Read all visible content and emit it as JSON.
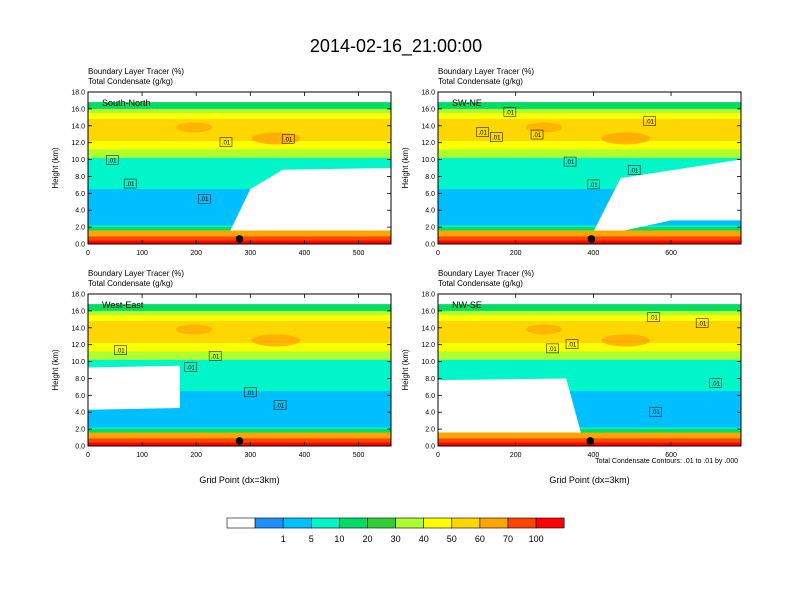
{
  "page_title": "2014-02-16_21:00:00",
  "subtitle_line1": "Boundary Layer Tracer",
  "subtitle_line1_unit": "(%)",
  "subtitle_line2": "Total Condensate",
  "subtitle_line2_unit": "(g/kg)",
  "ylabel": "Height (km)",
  "xlabel": "Grid Point (dx=3km)",
  "contour_note": "Total Condensate Contours: .01 to .01 by .000",
  "colorbar": {
    "colors": [
      "#ffffff",
      "#1e90ff",
      "#00bfff",
      "#00f5c8",
      "#00dc64",
      "#32cd32",
      "#adff2f",
      "#ffff00",
      "#ffd700",
      "#ffa500",
      "#ff4500",
      "#ff0000"
    ],
    "labels": [
      "1",
      "5",
      "10",
      "20",
      "30",
      "40",
      "50",
      "60",
      "70",
      "100"
    ]
  },
  "chart_data": [
    {
      "type": "heatmap",
      "panel": "South-North",
      "title": "South-North",
      "xlabel": "",
      "ylabel": "Height (km)",
      "xlim": [
        0,
        560
      ],
      "ylim": [
        0,
        18
      ],
      "x_ticks": [
        0,
        100,
        200,
        300,
        400,
        500
      ],
      "y_ticks": [
        "0.0",
        "2.0",
        "4.0",
        "6.0",
        "8.0",
        "10.0",
        "12.0",
        "14.0",
        "16.0",
        "18.0"
      ],
      "marker_x": 280,
      "contour_label": ".01",
      "contour_label_positions": [
        [
          45,
          9.9
        ],
        [
          78,
          7.1
        ],
        [
          215,
          5.3
        ],
        [
          255,
          12.0
        ],
        [
          370,
          12.4
        ]
      ]
    },
    {
      "type": "heatmap",
      "panel": "SW-NE",
      "title": "SW-NE",
      "xlabel": "",
      "ylabel": "Height (km)",
      "xlim": [
        0,
        780
      ],
      "ylim": [
        0,
        18
      ],
      "x_ticks": [
        0,
        200,
        400,
        600
      ],
      "y_ticks": [
        "0.0",
        "2.0",
        "4.0",
        "6.0",
        "8.0",
        "10.0",
        "12.0",
        "14.0",
        "16.0",
        "18.0"
      ],
      "marker_x": 395,
      "contour_label": ".01",
      "contour_label_positions": [
        [
          185,
          15.6
        ],
        [
          115,
          13.2
        ],
        [
          150,
          12.6
        ],
        [
          255,
          12.9
        ],
        [
          340,
          9.7
        ],
        [
          505,
          8.7
        ],
        [
          545,
          14.5
        ],
        [
          400,
          7.0
        ]
      ]
    },
    {
      "type": "heatmap",
      "panel": "West-East",
      "title": "West-East",
      "xlabel": "Grid Point (dx=3km)",
      "ylabel": "Height (km)",
      "xlim": [
        0,
        560
      ],
      "ylim": [
        0,
        18
      ],
      "x_ticks": [
        0,
        100,
        200,
        300,
        400,
        500
      ],
      "y_ticks": [
        "0.0",
        "2.0",
        "4.0",
        "6.0",
        "8.0",
        "10.0",
        "12.0",
        "14.0",
        "16.0",
        "18.0"
      ],
      "marker_x": 280,
      "contour_label": ".01",
      "contour_label_positions": [
        [
          60,
          11.3
        ],
        [
          190,
          9.3
        ],
        [
          235,
          10.6
        ],
        [
          300,
          6.3
        ],
        [
          355,
          4.8
        ]
      ]
    },
    {
      "type": "heatmap",
      "panel": "NW-SE",
      "title": "NW-SE",
      "xlabel": "Grid Point (dx=3km)",
      "ylabel": "Height (km)",
      "xlim": [
        0,
        780
      ],
      "ylim": [
        0,
        18
      ],
      "x_ticks": [
        0,
        200,
        400,
        600
      ],
      "y_ticks": [
        "0.0",
        "2.0",
        "4.0",
        "6.0",
        "8.0",
        "10.0",
        "12.0",
        "14.0",
        "16.0",
        "18.0"
      ],
      "marker_x": 392,
      "contour_label": ".01",
      "contour_label_positions": [
        [
          295,
          11.5
        ],
        [
          345,
          12.0
        ],
        [
          555,
          15.2
        ],
        [
          680,
          14.5
        ],
        [
          715,
          7.4
        ],
        [
          560,
          4.0
        ]
      ]
    }
  ]
}
